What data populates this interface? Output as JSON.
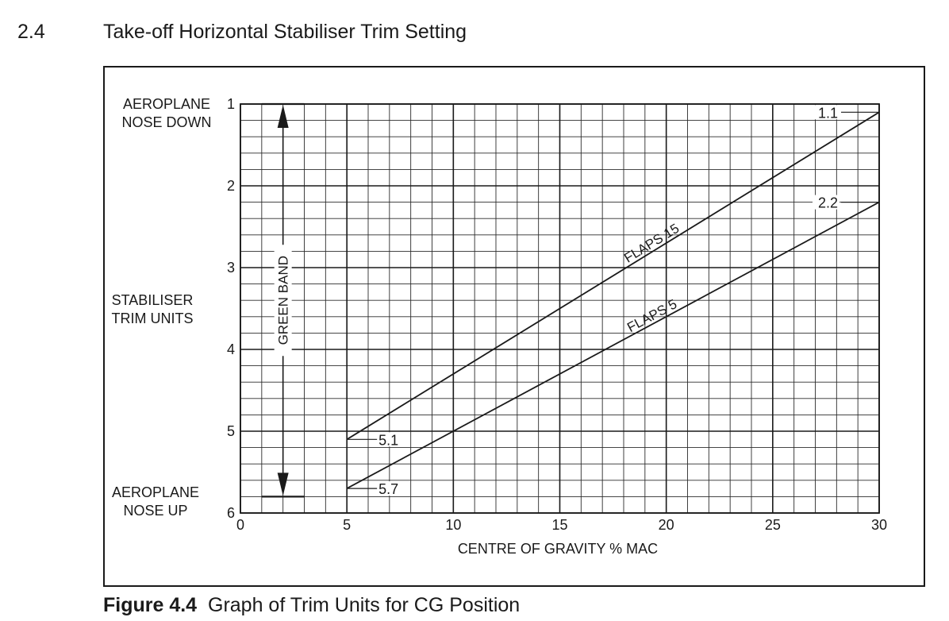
{
  "header": {
    "section_number": "2.4",
    "section_title": "Take-off Horizontal Stabiliser Trim Setting"
  },
  "caption": {
    "label": "Figure 4.4",
    "text": "Graph of Trim Units for CG Position"
  },
  "colors": {
    "ink": "#1a1a1a",
    "grid": "#2b2b2b",
    "background": "#ffffff"
  },
  "chart_data": {
    "type": "line",
    "xlabel": "CENTRE OF GRAVITY  % MAC",
    "ylabel_center": [
      "STABILISER",
      "TRIM UNITS"
    ],
    "ylabel_top": [
      "AEROPLANE",
      "NOSE DOWN"
    ],
    "ylabel_bottom": [
      "AEROPLANE",
      "NOSE UP"
    ],
    "xlim": [
      0,
      30
    ],
    "ylim": [
      1,
      6
    ],
    "y_inverted": true,
    "grid": true,
    "minor_grid": {
      "x_step": 1,
      "y_step": 0.2
    },
    "x_ticks": [
      "0",
      "5",
      "10",
      "15",
      "20",
      "25",
      "30"
    ],
    "y_ticks": [
      "1",
      "2",
      "3",
      "4",
      "5",
      "6"
    ],
    "series": [
      {
        "name": "FLAPS 15",
        "x": [
          5,
          30
        ],
        "y": [
          5.1,
          1.1
        ],
        "start_label": "5.1",
        "end_label": "1.1"
      },
      {
        "name": "FLAPS 5",
        "x": [
          5,
          30
        ],
        "y": [
          5.7,
          2.2
        ],
        "start_label": "5.7",
        "end_label": "2.2"
      }
    ],
    "band": {
      "label": "GREEN BAND",
      "x": 2,
      "y_range": [
        1,
        5.8
      ]
    }
  }
}
